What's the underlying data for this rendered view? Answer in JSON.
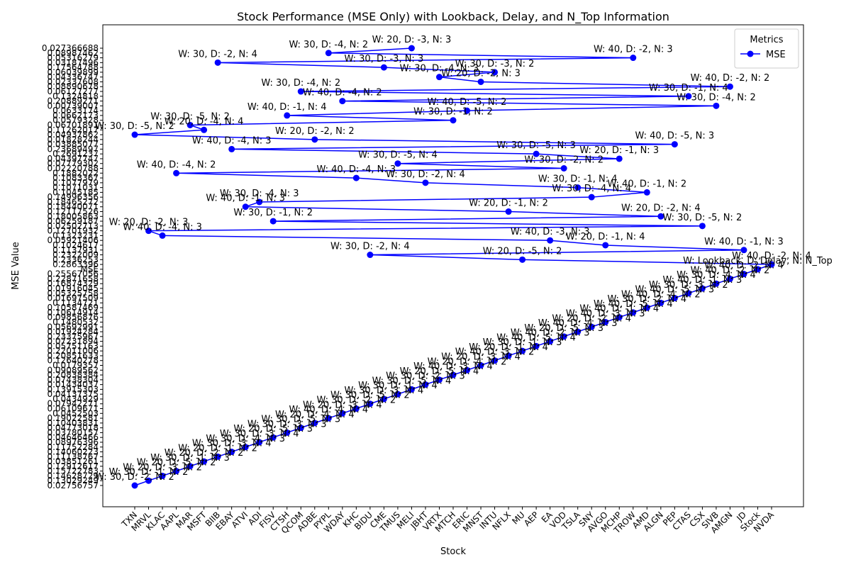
{
  "chart_data": {
    "type": "line",
    "title": "Stock Performance (MSE Only) with Lookback, Delay, and N_Top Information",
    "xlabel": "Stock",
    "ylabel": "MSE Value",
    "legend_title": "Metrics",
    "legend_position": "upper right",
    "series": [
      {
        "name": "MSE",
        "color": "#0000ff",
        "x": [
          "TXN",
          "MRVL",
          "KLAC",
          "AAPL",
          "MAR",
          "MSFT",
          "BIIB",
          "EBAY",
          "ATVI",
          "ADI",
          "FISV",
          "CTSH",
          "QCOM",
          "ADBE",
          "PYPL",
          "WDAY",
          "KHC",
          "BIDU",
          "CME",
          "TMUS",
          "MELI",
          "JBHT",
          "VRTX",
          "MTCH",
          "ERIC",
          "MNST",
          "INTU",
          "NFLX",
          "MU",
          "AEP",
          "EA",
          "VOD",
          "TSLA",
          "SNY",
          "AVGO",
          "MCHP",
          "TROW",
          "AMD",
          "ALGN",
          "PEP",
          "CTAS",
          "CSX",
          "SIVB",
          "AMGN",
          "JD",
          "Stock",
          "NVDA",
          "MU",
          "BIDU",
          "JD",
          "AVGO",
          "EA",
          "KLAC",
          "MRVL",
          "CSX",
          "FISV",
          "ALGN",
          "NFLX",
          "ATVI",
          "ADI",
          "SNY",
          "AMD",
          "TSLA",
          "JBHT",
          "KHC",
          "AAPL",
          "VOD",
          "TMUS",
          "MCHP",
          "AEP",
          "EBAY",
          "PEP",
          "ADBE",
          "TXN",
          "MSFT",
          "MAR",
          "MTCH",
          "CTSH",
          "ERIC",
          "SIVB",
          "WDAY",
          "CTAS",
          "QCOM",
          "AMGN",
          "MNST",
          "VRTX",
          "INTU",
          "CME",
          "BIIB",
          "TROW",
          "PYPL",
          "MELI"
        ],
        "values": [
          "0.02756757",
          "0.13029249",
          "0.14628729",
          "0.15722783",
          "0.12912617",
          "0.03851261",
          "0.11138767",
          "0.14060223",
          "0.11752284",
          "0.08976396",
          "0.04646466",
          "0.03780157",
          "0.04773018",
          "0.10403831",
          "0.19022581",
          "0.0452503",
          "0.06109671",
          "0.07942271",
          "0.0434929",
          "0.04137375",
          "0.13915303",
          "0.01434037",
          "0.07438304",
          "0.20838384",
          "0.09089562",
          "0.0179357",
          "0.12640278",
          "0.20851633",
          "0.22011006",
          "0.05751163",
          "0.07231894",
          "0.23375967",
          "0.01924284",
          "0.05692991",
          "0.1480532",
          "0.09856876",
          "0.10614914",
          "0.10587469",
          "0.1134721",
          "0.01697509",
          "0.05325758",
          "0.01916045",
          "0.16874329",
          "0.22871658",
          "0.25567056",
          "MSE",
          "0.2863396",
          "0.2336253",
          "0.2322009",
          "0.1137931",
          "0.1024617",
          "0.05921406",
          "0.1323231",
          "0.12701932",
          "0.02502713",
          "0.06259187",
          "0.18005863",
          "0.12117526",
          "0.18440071",
          "0.18465272",
          "0.14996356",
          "0.1045185",
          "0.1071031",
          "0.1077979",
          "0.1083367",
          "0.1882022",
          "0.02220788",
          "0.07779302",
          "0.04397747",
          "0.2691237",
          "0.23689497",
          "0.03885077",
          "0.01828244",
          "0.04937862",
          "0.11262017",
          "0.06701891",
          "0.0579328",
          "0.0662173",
          "0.0633174",
          "0.00739007",
          "0.20889271",
          "0.1324818",
          "0.06127277",
          "0.08890678",
          "0.02337608",
          "0.04336747",
          "0.06039899",
          "0.17564788",
          "0.03187496",
          "0.05316279",
          "0.08987462",
          "0.027366688"
        ],
        "annotations": [
          "W: 30, D: -2, N: 2",
          "W: 30, D: -1, N: 2",
          "W: 20, D: -3, N: 2",
          "W: 20, D: -5, N: 2",
          "W: 30, D: -1, N: 3",
          "W: 20, D: -2, N: 2",
          "W: 20, D: -1, N: 2",
          "W: 30, D: -3, N: 4",
          "W: 30, D: -4, N: 3",
          "W: 30, D: -3, N: 4",
          "W: 20, D: -5, N: 3",
          "W: 30, D: -3, N: 3",
          "W: 30, D: -5, N: 3",
          "W: 20, D: -4, N: 4",
          "W: 40, D: -4, N: 4",
          "W: 20, D: -3, N: 4",
          "W: 30, D: -2, N: 2",
          "W: 30, D: -5, N: 2",
          "W: 30, D: -3, N: 4",
          "W: 30, D: -1, N: 4",
          "W: 30, D: -5, N: 4",
          "W: 30, D: -2, N: 3",
          "W: 20, D: -5, N: 4",
          "W: 40, D: -3, N: 4",
          "W: 20, D: -4, N: 2",
          "W: 20, D: -3, N: 4",
          "W: 40, D: -3, N: 2",
          "W: 20, D: -1, N: 4",
          "W: 30, D: -1, N: 3",
          "W: 40, D: -5, N: 4",
          "W: 40, D: -2, N: 3",
          "W: 20, D: -5, N: 3",
          "W: 40, D: -4, N: 3",
          "W: 20, D: -2, N: 4",
          "W: 40, D: -3, N: 3",
          "W: 40, D: -1, N: 4",
          "W: 40, D: -5, N: 4",
          "W: 30, D: -2, N: 4",
          "W: 40, D: -4, N: 2",
          "W: 40, D: -5, N: 3",
          "W: 30, D: -3, N: 2",
          "W: 40, D: -1, N: 3",
          "W: 30, D: -4, N: 4",
          "W: 40, D: -2, N: 2",
          "W: 40, D: -2, N: 4",
          "W: Lookback, D: Delay, N: N_Top",
          "W: 40, D: -2, N: 4",
          "W: 20, D: -5, N: 2",
          "W: 30, D: -2, N: 4",
          "W: 40, D: -1, N: 3",
          "W: 20, D: -1, N: 4",
          "W: 40, D: -3, N: 3",
          "W: 40, D: -4, N: 3",
          "W: 20, D: -2, N: 3",
          "W: 30, D: -5, N: 2",
          "W: 30, D: -1, N: 2",
          "W: 20, D: -2, N: 4",
          "W: 20, D: -1, N: 2",
          "W: 40, D: -1, N: 3",
          "W: 30, D: -4, N: 3",
          "W: 30, D: -4, N: 4",
          "W: 40, D: -1, N: 2",
          "W: 30, D: -1, N: 4",
          "W: 30, D: -2, N: 4",
          "W: 40, D: -4, N: 3",
          "W: 40, D: -4, N: 2",
          "W: 30, D: -2, N: 2",
          "W: 30, D: -5, N: 4",
          "W: 20, D: -1, N: 3",
          "W: 30, D: -5, N: 3",
          "W: 40, D: -4, N: 3",
          "W: 40, D: -5, N: 3",
          "W: 20, D: -2, N: 2",
          "W: 30, D: -5, N: 2",
          "W: 20, D: -4, N: 4",
          "W: 30, D: -5, N: 2",
          "W: 30, D: -1, N: 2",
          "W: 40, D: -1, N: 4",
          "W: 40, D: -5, N: 2",
          "W: 30, D: -4, N: 2",
          "W: 40, D: -4, N: 2",
          "W: 30, D: -1, N: 4",
          "W: 30, D: -4, N: 2",
          "W: 40, D: -2, N: 2",
          "W: 20, D: -2, N: 3",
          "W: 30, D: -4, N: 3",
          "W: 30, D: -3, N: 2",
          "W: 30, D: -3, N: 3",
          "W: 30, D: -2, N: 4",
          "W: 40, D: -2, N: 3",
          "W: 30, D: -4, N: 2",
          "W: 20, D: -3, N: 3"
        ]
      }
    ]
  }
}
